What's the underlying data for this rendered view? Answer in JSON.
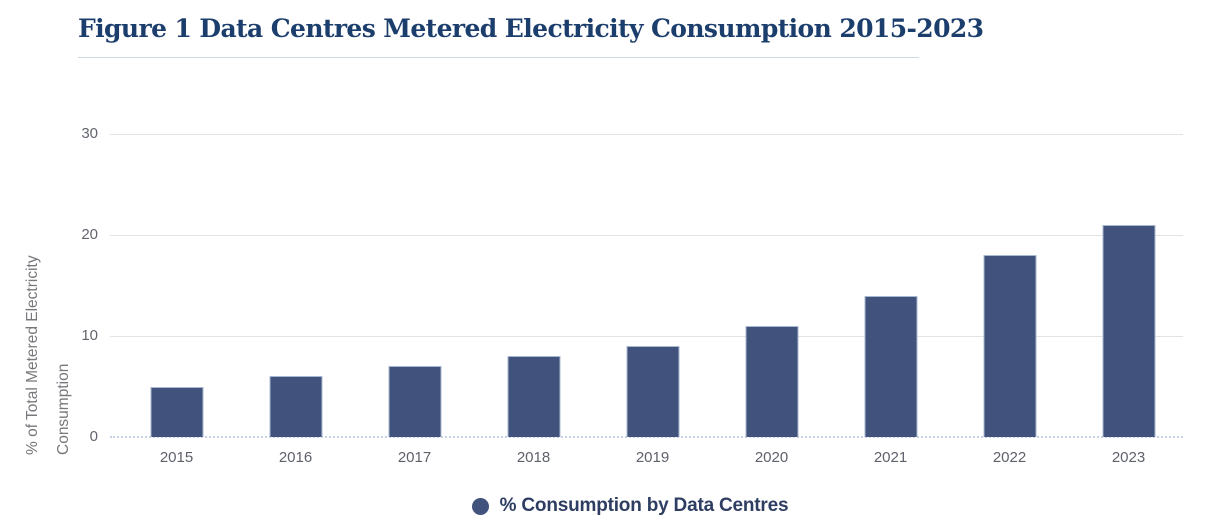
{
  "figure": {
    "title": "Figure 1 Data Centres Metered Electricity Consumption 2015-2023"
  },
  "chart_data": {
    "type": "bar",
    "title": "Figure 1 Data Centres Metered Electricity Consumption 2015-2023",
    "categories": [
      "2015",
      "2016",
      "2017",
      "2018",
      "2019",
      "2020",
      "2021",
      "2022",
      "2023"
    ],
    "values": [
      5,
      6,
      7,
      8,
      9,
      11,
      14,
      18,
      21
    ],
    "series": [
      {
        "name": "% Consumption by Data Centres",
        "values": [
          5,
          6,
          7,
          8,
          9,
          11,
          14,
          18,
          21
        ]
      }
    ],
    "xlabel": "",
    "ylabel": "% of Total Metered Electricity Consumption",
    "ylabel_lines": [
      "% of Total Metered Electricity",
      "Consumption"
    ],
    "ylim": [
      0,
      30
    ],
    "yticks": [
      30,
      20,
      10,
      0
    ],
    "grid": true,
    "legend_position": "bottom-center",
    "legend_label": "% Consumption by Data Centres",
    "colors": {
      "bar_fill": "#41537c",
      "bar_border": "#aab9d2",
      "title_navy": "#1c3e6d",
      "legend_text": "#2e3d62",
      "gridline": "#e3e3e4",
      "baseline": "#c6d2e4",
      "tick_text": "#63656e",
      "axis_title_text": "#77787c"
    }
  }
}
